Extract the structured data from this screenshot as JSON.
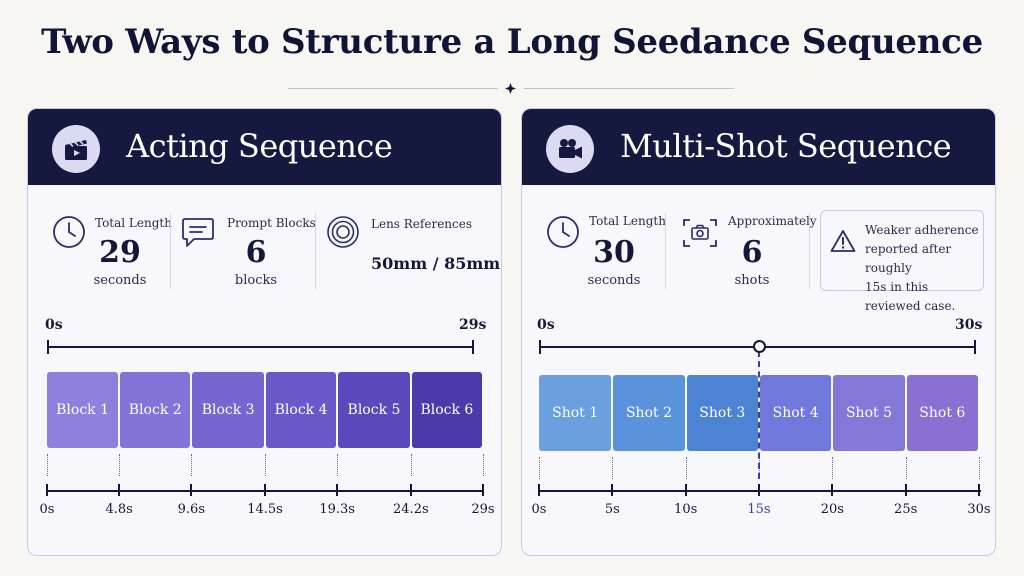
{
  "title": "Two Ways to Structure a Long Seedance Sequence",
  "colors": {
    "header_bg": "#151940",
    "block_colors": [
      "#8f80dd",
      "#8473d8",
      "#7866d0",
      "#6a57c8",
      "#5c48bd",
      "#4c3aa8"
    ],
    "shot_colors": [
      "#6a9fe0",
      "#5a92dc",
      "#4c84d3",
      "#6f79dc",
      "#8377d8",
      "#8a70d2"
    ]
  },
  "left": {
    "title": "Acting Sequence",
    "icon": "clapperboard-icon",
    "stats": {
      "total_label": "Total Length",
      "total_value": "29",
      "total_unit": "seconds",
      "blocks_label": "Prompt Blocks",
      "blocks_value": "6",
      "blocks_unit": "blocks",
      "lens_label": "Lens References",
      "lens_value": "50mm / 85mm"
    },
    "timeline": {
      "start_label": "0s",
      "end_label": "29s",
      "duration": 29,
      "segments": [
        {
          "label": "Block 1",
          "start": 0,
          "end": 4.8
        },
        {
          "label": "Block 2",
          "start": 4.8,
          "end": 9.6
        },
        {
          "label": "Block 3",
          "start": 9.6,
          "end": 14.5
        },
        {
          "label": "Block 4",
          "start": 14.5,
          "end": 19.3
        },
        {
          "label": "Block 5",
          "start": 19.3,
          "end": 24.2
        },
        {
          "label": "Block 6",
          "start": 24.2,
          "end": 29
        }
      ],
      "ticks": [
        {
          "value": 0,
          "label": "0s"
        },
        {
          "value": 4.8,
          "label": "4.8s"
        },
        {
          "value": 9.6,
          "label": "9.6s"
        },
        {
          "value": 14.5,
          "label": "14.5s"
        },
        {
          "value": 19.3,
          "label": "19.3s"
        },
        {
          "value": 24.2,
          "label": "24.2s"
        },
        {
          "value": 29,
          "label": "29s"
        }
      ]
    }
  },
  "right": {
    "title": "Multi-Shot Sequence",
    "icon": "video-camera-icon",
    "stats": {
      "total_label": "Total Length",
      "total_value": "30",
      "total_unit": "seconds",
      "shots_label": "Approximately",
      "shots_value": "6",
      "shots_unit": "shots",
      "warning_lines": [
        "Weaker adherence",
        "reported after roughly",
        "15s in this reviewed case."
      ]
    },
    "timeline": {
      "start_label": "0s",
      "end_label": "30s",
      "duration": 30,
      "marker": 15,
      "segments": [
        {
          "label": "Shot 1",
          "start": 0,
          "end": 5
        },
        {
          "label": "Shot 2",
          "start": 5,
          "end": 10
        },
        {
          "label": "Shot 3",
          "start": 10,
          "end": 15
        },
        {
          "label": "Shot 4",
          "start": 15,
          "end": 20
        },
        {
          "label": "Shot 5",
          "start": 20,
          "end": 25
        },
        {
          "label": "Shot 6",
          "start": 25,
          "end": 30
        }
      ],
      "ticks": [
        {
          "value": 0,
          "label": "0s"
        },
        {
          "value": 5,
          "label": "5s"
        },
        {
          "value": 10,
          "label": "10s"
        },
        {
          "value": 15,
          "label": "15s"
        },
        {
          "value": 20,
          "label": "20s"
        },
        {
          "value": 25,
          "label": "25s"
        },
        {
          "value": 30,
          "label": "30s"
        }
      ]
    }
  }
}
